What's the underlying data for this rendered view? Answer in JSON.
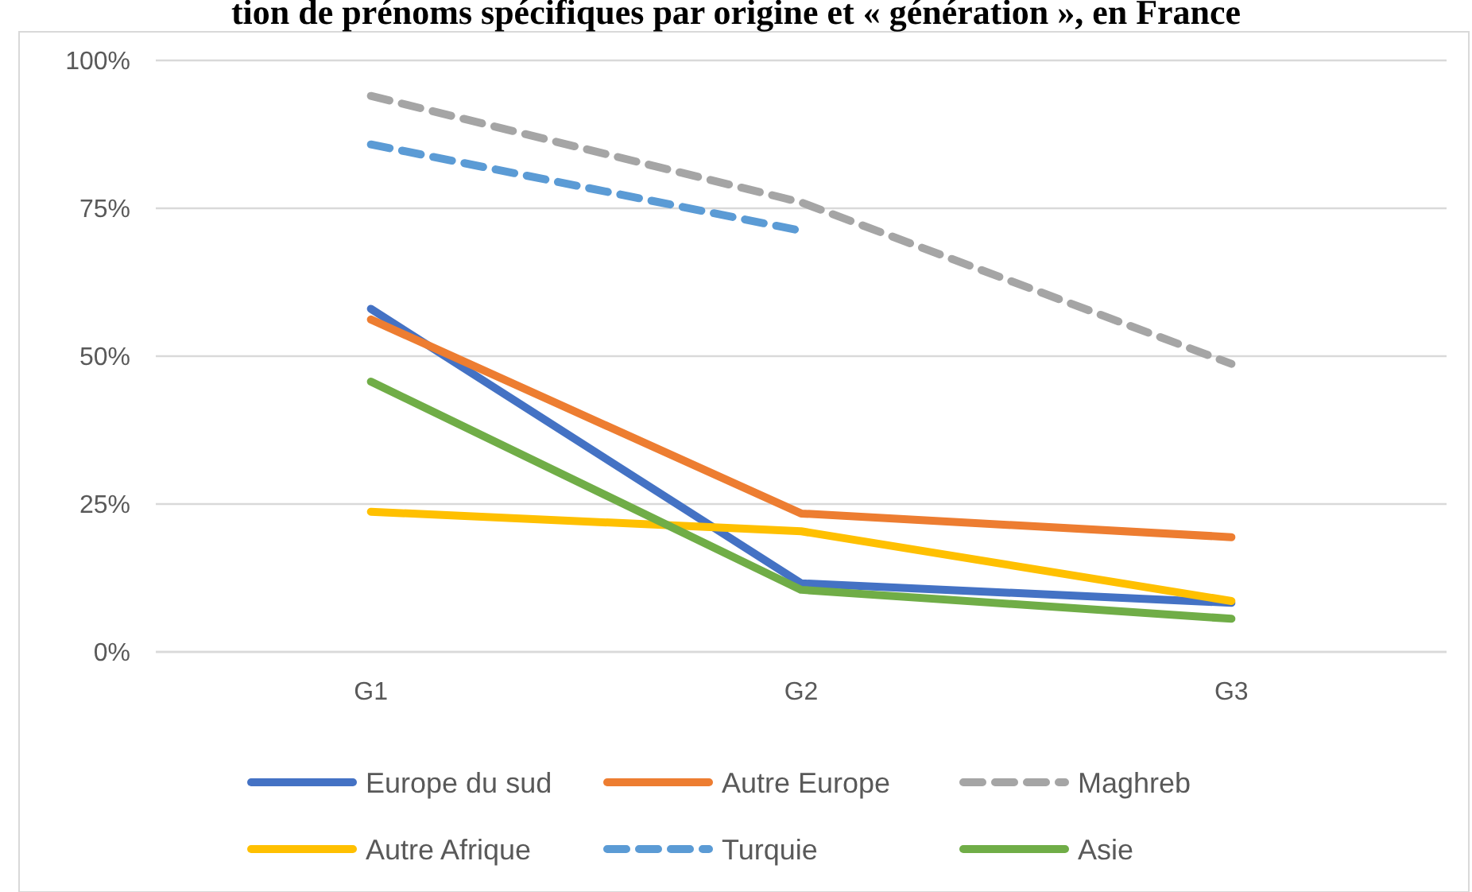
{
  "chart_data": {
    "type": "line",
    "title": "tion de prénoms spécifiques par origine et « génération », en France",
    "categories": [
      "G1",
      "G2",
      "G3"
    ],
    "ylim": [
      0,
      100
    ],
    "yticks": [
      {
        "value": 0,
        "label": "0%"
      },
      {
        "value": 25,
        "label": "25%"
      },
      {
        "value": 50,
        "label": "50%"
      },
      {
        "value": 75,
        "label": "75%"
      },
      {
        "value": 100,
        "label": "100%"
      }
    ],
    "grid": "y",
    "legend": "bottom",
    "marker": "none",
    "series": [
      {
        "name": "Europe du sud",
        "color": "#4472c4",
        "line_style": "solid",
        "values": [
          58,
          11.6,
          8.3
        ]
      },
      {
        "name": "Autre Europe",
        "color": "#ed7d31",
        "line_style": "solid",
        "values": [
          56.2,
          23.4,
          19.4
        ]
      },
      {
        "name": "Maghreb",
        "color": "#a5a5a5",
        "line_style": "dashed",
        "values": [
          94,
          76,
          48.7
        ]
      },
      {
        "name": "Autre Afrique",
        "color": "#ffc000",
        "line_style": "solid",
        "values": [
          23.7,
          20.4,
          8.6
        ]
      },
      {
        "name": "Turquie",
        "color": "#5b9bd5",
        "line_style": "dashed",
        "values": [
          85.8,
          71.2,
          null
        ]
      },
      {
        "name": "Asie",
        "color": "#70ad47",
        "line_style": "solid",
        "values": [
          45.7,
          10.5,
          5.6
        ]
      }
    ]
  }
}
